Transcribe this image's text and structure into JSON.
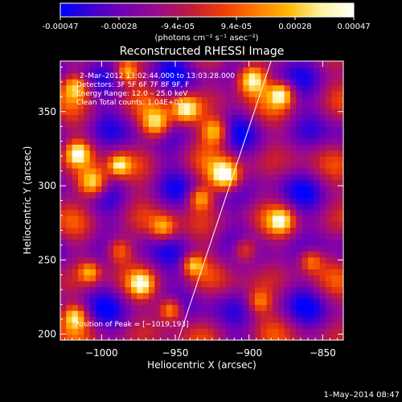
{
  "colorbar": {
    "ticks": [
      "-0.00047",
      "-0.00028",
      "-9.4e-05",
      "9.4e-05",
      "0.00028",
      "0.00047"
    ],
    "label": "(photons cm⁻² s⁻¹ asec⁻²)",
    "range": [
      -0.00047,
      0.00047
    ],
    "colors": [
      "#0000ff",
      "#3e00d0",
      "#7800b0",
      "#9b0b8a",
      "#c01a3a",
      "#ee3d05",
      "#ff7a00",
      "#ffb800",
      "#fff2a0",
      "#ffffff"
    ]
  },
  "chart_data": {
    "type": "heatmap",
    "title": "Reconstructed RHESSI Image",
    "xlabel": "Heliocentric X (arcsec)",
    "ylabel": "Heliocentric Y (arcsec)",
    "xlim": [
      -1028,
      -836
    ],
    "ylim": [
      196,
      384
    ],
    "xticks": [
      -1000,
      -950,
      -900,
      -850
    ],
    "xtick_labels": [
      "−1000",
      "−950",
      "−900",
      "−850"
    ],
    "yticks": [
      200,
      250,
      300,
      350
    ],
    "ytick_labels": [
      "200",
      "250",
      "300",
      "350"
    ],
    "annotations": [
      "2–Mar–2012 13:02:44.000 to 13:03:28.000",
      "Detectors: 3F 5F 6F 7F 8F 9F, F",
      "Energy Range: 12.0 – 25.0 keV",
      "Clean     Total counts: 1.04E+03"
    ],
    "peak_label": "Position of Peak = [−1019,193]",
    "peak_position": [
      -1019,
      193
    ],
    "limb_line": [
      [
        -948,
        196
      ],
      [
        -885,
        384
      ]
    ],
    "note": "Pixel intensity field reconstructed approximately; bright (yellow/white) emission concentrated along upper-left and limb, purple background elsewhere."
  },
  "footer": {
    "date": "1–May–2014 08:47"
  }
}
